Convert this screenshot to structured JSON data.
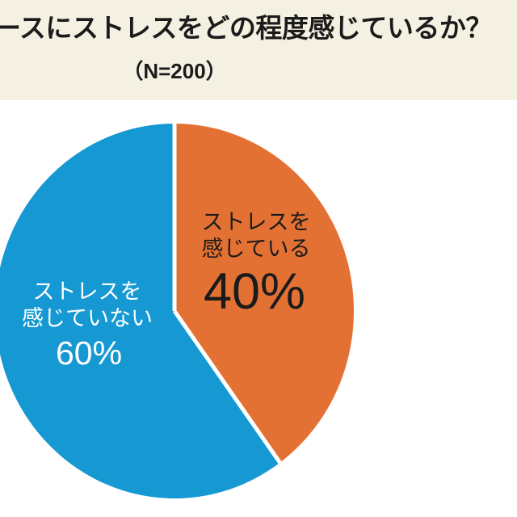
{
  "header": {
    "title": "ースにストレスをどの程度感じているか？",
    "subtitle": "（N=200）",
    "background": "#F5F1E2",
    "text_color": "#1B1B1B"
  },
  "chart_data": {
    "type": "pie",
    "title": "ースにストレスをどの程度感じているか？",
    "subtitle": "（N=200）",
    "n": 200,
    "legend_position": "none",
    "start_angle_deg": 0,
    "direction": "clockwise",
    "divider_color": "#FFFFFF",
    "background": "#FFFFFF",
    "slices": [
      {
        "label": "ストレスを感じている",
        "label_lines": [
          "ストレスを",
          "感じている"
        ],
        "value": 40,
        "pct_label": "40%",
        "color": "#E47134",
        "label_color": "#1B1B1B"
      },
      {
        "label": "ストレスを感じていない",
        "label_lines": [
          "ストレスを",
          "感じていない"
        ],
        "value": 60,
        "pct_label": "60%",
        "color": "#1699D3",
        "label_color": "#FFFFFF"
      }
    ]
  }
}
